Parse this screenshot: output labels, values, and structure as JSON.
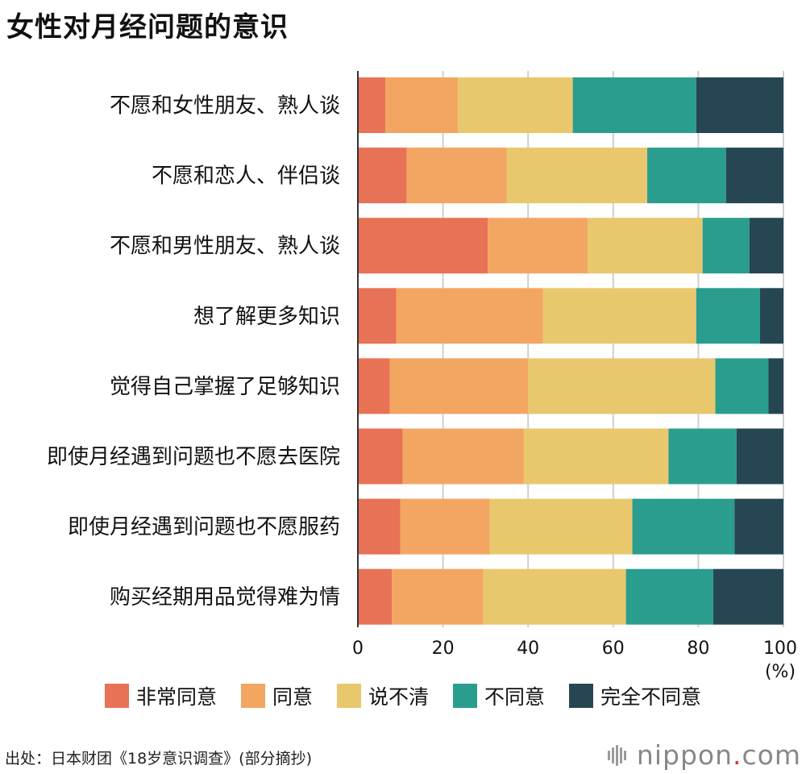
{
  "title": "女性对月经问题的意识",
  "chart_data": {
    "type": "bar",
    "orientation": "horizontal",
    "stacked": true,
    "categories": [
      "不愿和女性朋友、熟人谈",
      "不愿和恋人、伴侣谈",
      "不愿和男性朋友、熟人谈",
      "想了解更多知识",
      "觉得自己掌握了足够知识",
      "即使月经遇到问题也不愿去医院",
      "即使月经遇到问题也不愿服药",
      "购买经期用品觉得难为情"
    ],
    "series": [
      {
        "name": "非常同意",
        "color": "#e87255",
        "values": [
          6.5,
          11.5,
          30.5,
          9,
          7.5,
          10.5,
          10,
          8
        ]
      },
      {
        "name": "同意",
        "color": "#f3a562",
        "values": [
          17,
          23.5,
          23.5,
          34.5,
          32.5,
          28.5,
          21,
          21.5
        ]
      },
      {
        "name": "说不清",
        "color": "#e8c76d",
        "values": [
          27,
          33,
          27,
          36,
          44,
          34,
          33.5,
          33.5
        ]
      },
      {
        "name": "不同意",
        "color": "#2a9d8f",
        "values": [
          29,
          18.5,
          11,
          15,
          12.5,
          16,
          24,
          20.5
        ]
      },
      {
        "name": "完全不同意",
        "color": "#264653",
        "values": [
          20.5,
          13.5,
          8,
          5.5,
          3.5,
          11,
          11.5,
          16.5
        ]
      }
    ],
    "xlim": [
      0,
      100
    ],
    "xticks": [
      "0",
      "20",
      "40",
      "60",
      "80",
      "100"
    ],
    "unit": "(%)",
    "grid": true,
    "legend_position": "bottom"
  },
  "source": "出处：日本财团《18岁意识调查》(部分摘抄)",
  "logo": {
    "name": "nippon",
    "dot": ".",
    "suffix": "com"
  }
}
